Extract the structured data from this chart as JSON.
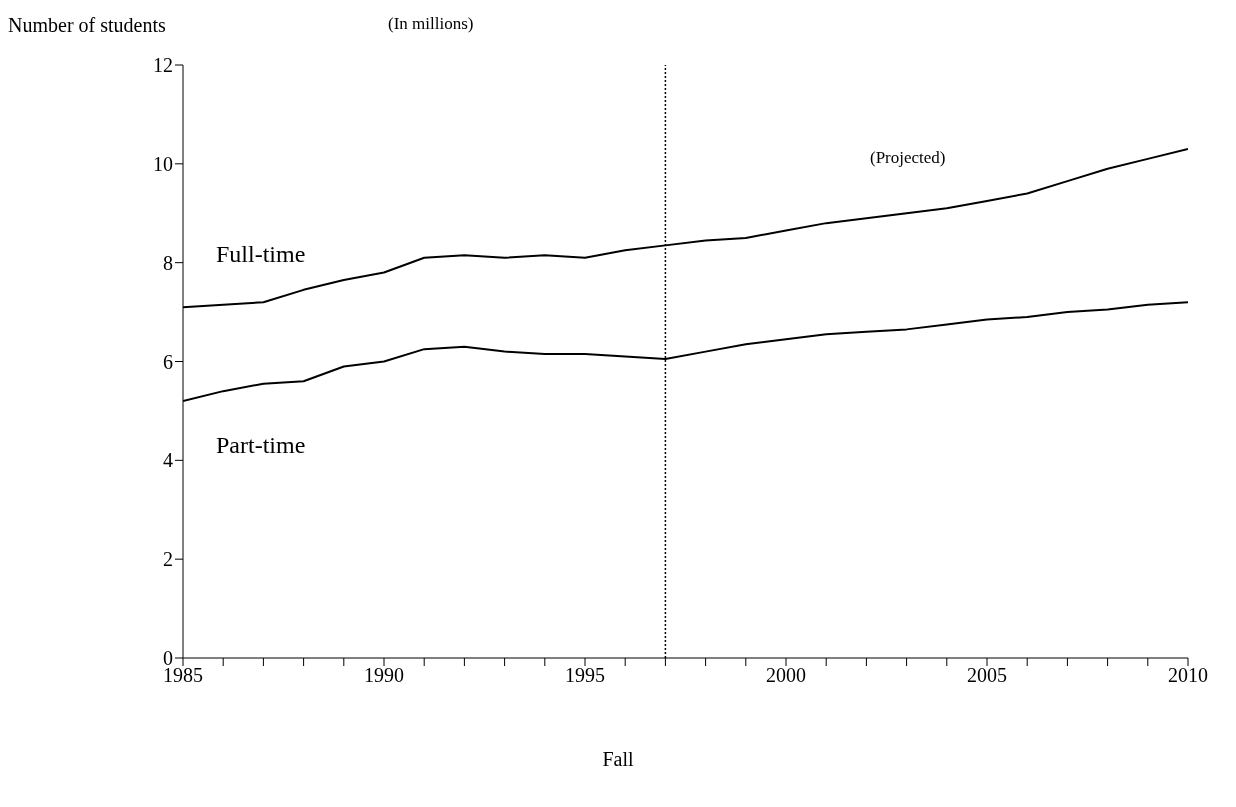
{
  "chart_data": {
    "type": "line",
    "ylabel": "Number of students",
    "xlabel": "Fall",
    "annotations": [
      "(In millions)",
      "(Projected)"
    ],
    "x": [
      1985,
      1986,
      1987,
      1988,
      1989,
      1990,
      1991,
      1992,
      1993,
      1994,
      1995,
      1996,
      1997,
      1998,
      1999,
      2000,
      2001,
      2002,
      2003,
      2004,
      2005,
      2006,
      2007,
      2008,
      2009,
      2010
    ],
    "series": [
      {
        "name": "Full-time",
        "color": "#000000",
        "values": [
          7.1,
          7.15,
          7.2,
          7.45,
          7.65,
          7.8,
          8.1,
          8.15,
          8.1,
          8.15,
          8.1,
          8.25,
          8.35,
          8.45,
          8.5,
          8.65,
          8.8,
          8.9,
          9.0,
          9.1,
          9.25,
          9.4,
          9.65,
          9.9,
          10.1,
          10.3
        ]
      },
      {
        "name": "Part-time",
        "color": "#000000",
        "values": [
          5.2,
          5.4,
          5.55,
          5.6,
          5.9,
          6.0,
          6.25,
          6.3,
          6.2,
          6.15,
          6.15,
          6.1,
          6.05,
          6.2,
          6.35,
          6.45,
          6.55,
          6.6,
          6.65,
          6.75,
          6.85,
          6.9,
          7.0,
          7.05,
          7.15,
          7.2
        ]
      }
    ],
    "xlim": [
      1985,
      2010
    ],
    "xticks": [
      1985,
      {
        "value": 1986,
        "label": null
      },
      {
        "value": 1987,
        "label": null
      },
      {
        "value": 1988,
        "label": null
      },
      {
        "value": 1989,
        "label": null
      },
      1990,
      {
        "value": 1991,
        "label": null
      },
      {
        "value": 1992,
        "label": null
      },
      {
        "value": 1993,
        "label": null
      },
      {
        "value": 1994,
        "label": null
      },
      1995,
      {
        "value": 1996,
        "label": null
      },
      {
        "value": 1997,
        "label": null
      },
      {
        "value": 1998,
        "label": null
      },
      {
        "value": 1999,
        "label": null
      },
      2000,
      {
        "value": 2001,
        "label": null
      },
      {
        "value": 2002,
        "label": null
      },
      {
        "value": 2003,
        "label": null
      },
      {
        "value": 2004,
        "label": null
      },
      2005,
      {
        "value": 2006,
        "label": null
      },
      {
        "value": 2007,
        "label": null
      },
      {
        "value": 2008,
        "label": null
      },
      {
        "value": 2009,
        "label": null
      },
      2010
    ],
    "ylim": [
      0,
      12
    ],
    "yticks": [
      0,
      2,
      4,
      6,
      8,
      10,
      12
    ],
    "ref_lines": [
      {
        "axis": "x",
        "value": 1997,
        "line_style": "dotted",
        "color": "#000000"
      }
    ],
    "grid": false,
    "marker": "none",
    "line_style": "solid"
  }
}
